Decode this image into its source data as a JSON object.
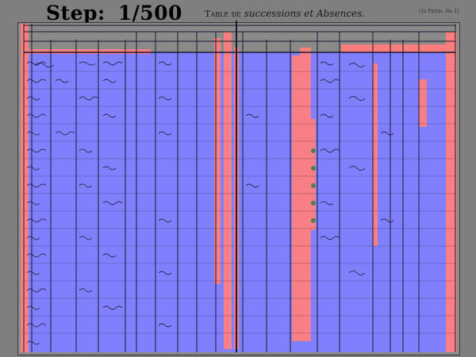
{
  "overlay": {
    "step_label": "Step:",
    "step_value": "1/500"
  },
  "document": {
    "title_prefix": "Table de",
    "title_main": "successions et Absences.",
    "page_mark": "(1e Partie. No 1)"
  },
  "colors": {
    "background": "#7f7f7f",
    "mask_blue": "#8080ff",
    "mask_red": "#ff7f7f",
    "ink": "#1a1a2e",
    "green_dots": "#4d7f4d"
  }
}
